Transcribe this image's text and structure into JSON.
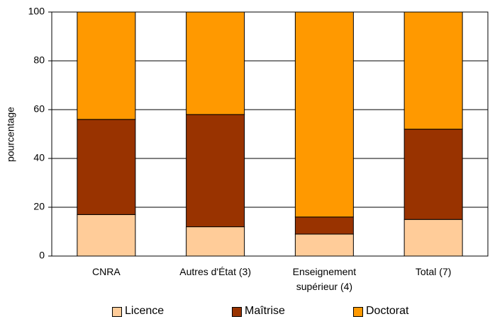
{
  "chart_data": {
    "type": "stacked_bar",
    "y_label": "pourcentage",
    "categories": [
      "CNRA",
      "Autres d'État (3)",
      "Enseignement supérieur (4)",
      "Total (7)"
    ],
    "series": [
      {
        "name": "Licence",
        "color": "#ffcc99",
        "values": [
          17,
          12,
          9,
          15
        ]
      },
      {
        "name": "Maîtrise",
        "color": "#993300",
        "values": [
          39,
          46,
          7,
          37
        ]
      },
      {
        "name": "Doctorat",
        "color": "#ff9900",
        "values": [
          44,
          42,
          84,
          48
        ]
      }
    ],
    "ylim": [
      0,
      100
    ],
    "yticks": [
      0,
      20,
      40,
      60,
      80,
      100
    ],
    "grid": true,
    "legend": "bottom"
  }
}
